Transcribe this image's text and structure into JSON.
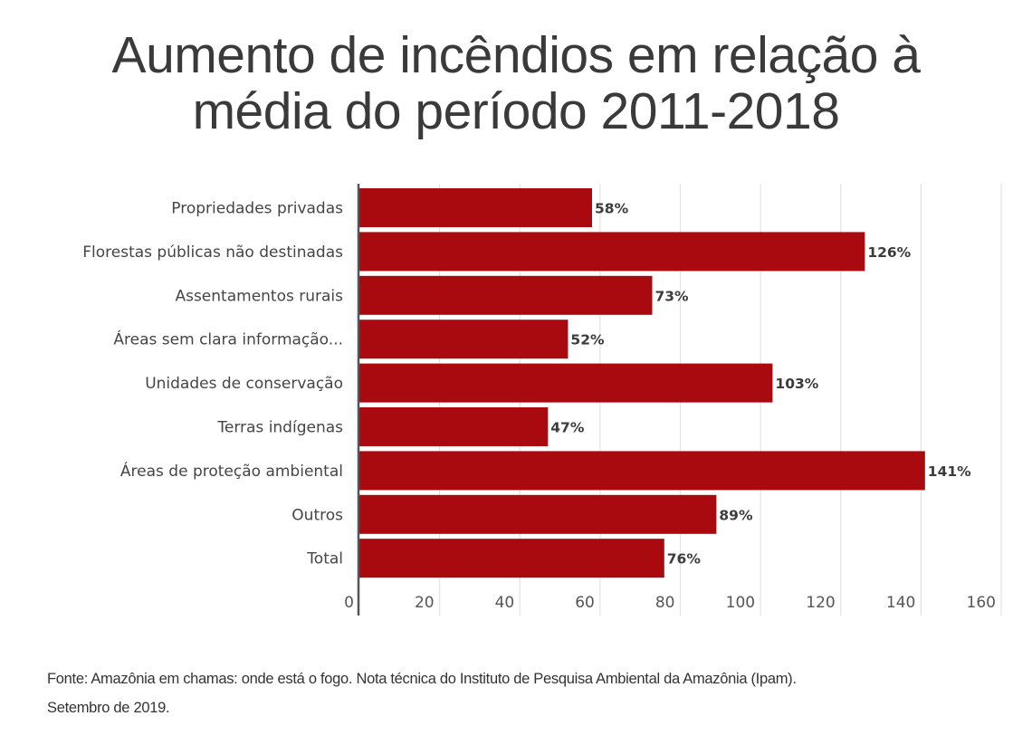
{
  "title": {
    "line1": "Aumento de incêndios em relação à",
    "line2": "média do período 2011-2018"
  },
  "footer": {
    "line1": "Fonte: Amazônia em chamas: onde está o fogo. Nota técnica do Instituto de Pesquisa Ambiental da Amazônia (Ipam).",
    "line2": "Setembro de 2019."
  },
  "colors": {
    "bar": "#a80a10",
    "title": "#3a3a3a",
    "gridline": "#e3e3e3",
    "axis": "#555555"
  },
  "chart_data": {
    "type": "bar",
    "orientation": "horizontal",
    "title": "Aumento de incêndios em relação à média do período 2011-2018",
    "xlabel": "",
    "ylabel": "",
    "categories": [
      "Propriedades privadas",
      "Florestas públicas não destinadas",
      "Assentamentos rurais",
      "Áreas sem clara informação...",
      "Unidades de conservação",
      "Terras indígenas",
      "Áreas de proteção ambiental",
      "Outros",
      "Total"
    ],
    "values": [
      58,
      126,
      73,
      52,
      103,
      47,
      141,
      89,
      76
    ],
    "value_labels": [
      "58%",
      "126%",
      "73%",
      "52%",
      "103%",
      "47%",
      "141%",
      "89%",
      "76%"
    ],
    "xlim": [
      0,
      160
    ],
    "xticks": [
      0,
      20,
      40,
      60,
      80,
      100,
      120,
      140,
      160
    ],
    "xtick_labels": [
      "0",
      "20",
      "40",
      "60",
      "80",
      "100",
      "120",
      "140",
      "160"
    ],
    "grid": true,
    "legend": "none"
  }
}
